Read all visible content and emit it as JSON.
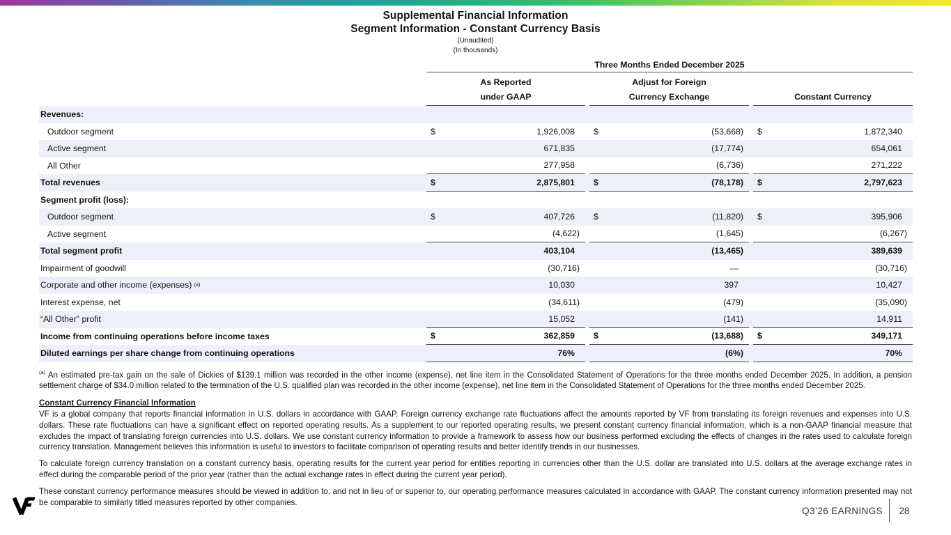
{
  "header": {
    "title_line1": "Supplemental Financial Information",
    "title_line2": "Segment Information - Constant Currency Basis",
    "note_unaudited": "(Unaudited)",
    "note_thousands": "(In thousands)"
  },
  "table": {
    "period_header": "Three Months Ended December 2025",
    "currency_symbol": "$",
    "columns": [
      {
        "line1": "As Reported",
        "line2": "under GAAP"
      },
      {
        "line1": "Adjust for Foreign",
        "line2": "Currency Exchange"
      },
      {
        "line1": "",
        "line2": "Constant Currency"
      }
    ],
    "rows": [
      {
        "label": "Revenues:",
        "bold": true,
        "shaded": true,
        "values": [
          "",
          "",
          ""
        ]
      },
      {
        "label": "Outdoor segment",
        "indent": true,
        "dollar": true,
        "values": [
          "1,926,008",
          "(53,668)",
          "1,872,340"
        ]
      },
      {
        "label": "Active segment",
        "indent": true,
        "shaded": true,
        "values": [
          "671,835",
          "(17,774)",
          "654,061"
        ]
      },
      {
        "label": "All Other",
        "indent": true,
        "line_below": true,
        "values": [
          "277,958",
          "(6,736)",
          "271,222"
        ]
      },
      {
        "label": "Total revenues",
        "bold": true,
        "shaded": true,
        "dollar": true,
        "line_below": true,
        "values": [
          "2,875,801",
          "(78,178)",
          "2,797,623"
        ]
      },
      {
        "label": "Segment profit (loss):",
        "bold": true,
        "values": [
          "",
          "",
          ""
        ]
      },
      {
        "label": "Outdoor segment",
        "indent": true,
        "shaded": true,
        "dollar": true,
        "values": [
          "407,726",
          "(11,820)",
          "395,906"
        ]
      },
      {
        "label": "Active segment",
        "indent": true,
        "line_below": true,
        "values": [
          "(4,622)",
          "(1,645)",
          "(6,267)"
        ]
      },
      {
        "label": "Total segment profit",
        "bold": true,
        "shaded": true,
        "values": [
          "403,104",
          "(13,465)",
          "389,639"
        ]
      },
      {
        "label": "Impairment of goodwill",
        "values": [
          "(30,716)",
          "—",
          "(30,716)"
        ]
      },
      {
        "label": "Corporate and other income (expenses)",
        "sup": "(a)",
        "shaded": true,
        "values": [
          "10,030",
          "397",
          "10,427"
        ]
      },
      {
        "label": "Interest expense, net",
        "values": [
          "(34,611)",
          "(479)",
          "(35,090)"
        ]
      },
      {
        "label": "“All Other” profit",
        "shaded": true,
        "line_below": true,
        "values": [
          "15,052",
          "(141)",
          "14,911"
        ]
      },
      {
        "label": "Income from continuing operations before income taxes",
        "bold": true,
        "dollar": true,
        "line_below": true,
        "values": [
          "362,859",
          "(13,688)",
          "349,171"
        ]
      },
      {
        "label": "Diluted earnings per share change from continuing operations",
        "bold": true,
        "shaded": true,
        "line_below": true,
        "values": [
          "76%",
          "(6%)",
          "70%"
        ]
      }
    ]
  },
  "footnote": {
    "marker": "(a)",
    "text": "An estimated pre-tax gain on the sale of Dickies of $139.1 million was recorded in the other income (expense), net line item in the Consolidated Statement of Operations for the three months ended December 2025. In addition, a pension settlement charge of $34.0 million related to the termination of the U.S. qualified plan was recorded in the other income (expense), net line item in the Consolidated Statement of Operations for the three months ended December 2025."
  },
  "cc_section": {
    "heading": "Constant Currency Financial Information",
    "paragraphs": [
      "VF is a global company that reports financial information in U.S. dollars in accordance with GAAP. Foreign currency exchange rate fluctuations affect the amounts reported by VF from translating its foreign revenues and expenses into U.S. dollars. These rate fluctuations can have a significant effect on reported operating results. As a supplement to our reported operating results, we present constant currency financial information, which is a non-GAAP financial measure that excludes the impact of translating foreign currencies into U.S. dollars. We use constant currency information to provide a framework to assess how our business performed excluding the effects of changes in the rates used to calculate foreign currency translation. Management believes this information is useful to investors to facilitate comparison of operating results and better identify trends in our businesses.",
      "To calculate foreign currency translation on a constant currency basis, operating results for the current year period for entities reporting in currencies other than the U.S. dollar are translated into U.S. dollars at the average exchange rates in effect during the comparable period of the prior year (rather than the actual exchange rates in effect during the current year period).",
      "These constant currency performance measures should be viewed in addition to, and not in lieu of or superior to, our operating performance measures calculated in accordance with GAAP. The constant currency information presented may not be comparable to similarly titled measures reported by other companies."
    ]
  },
  "footer": {
    "earnings_label": "Q3’26 EARNINGS",
    "page_number": "28"
  },
  "colors": {
    "row_shading": "#edf0f8",
    "rule_line": "#4a4a4a",
    "text": "#141414",
    "gradient": [
      "#9c3a9b",
      "#6a5aa8",
      "#4086ad",
      "#21a19a",
      "#24b27f",
      "#45c163",
      "#8fd34f",
      "#d8e13f",
      "#f5e62e"
    ]
  }
}
